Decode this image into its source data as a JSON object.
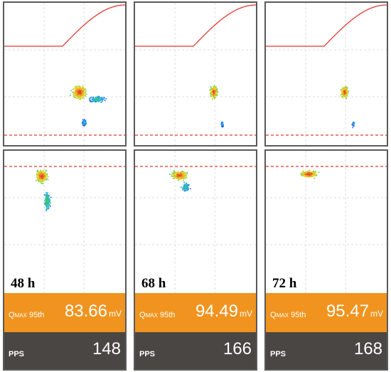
{
  "chart_data": {
    "type": "scatter",
    "panels": [
      {
        "time_label": "48 h",
        "qmax_label": "Q",
        "qmax_sub": "MAX",
        "qmax_suffix": " 95th",
        "qmax_value": "83.66",
        "qmax_unit": "mV",
        "pps_label": "PPS",
        "pps_value": "148"
      },
      {
        "time_label": "68 h",
        "qmax_label": "Q",
        "qmax_sub": "MAX",
        "qmax_suffix": " 95th",
        "qmax_value": "94.49",
        "qmax_unit": "mV",
        "pps_label": "PPS",
        "pps_value": "166"
      },
      {
        "time_label": "72 h",
        "qmax_label": "Q",
        "qmax_sub": "MAX",
        "qmax_suffix": " 95th",
        "qmax_value": "95.47",
        "qmax_unit": "mV",
        "pps_label": "PPS",
        "pps_value": "168"
      }
    ],
    "grid": true,
    "colors": {
      "curve": "#e0392f",
      "qmax_bar": "#f0941f",
      "pps_bar": "#4a4643",
      "border": "#5a5a5a"
    }
  }
}
